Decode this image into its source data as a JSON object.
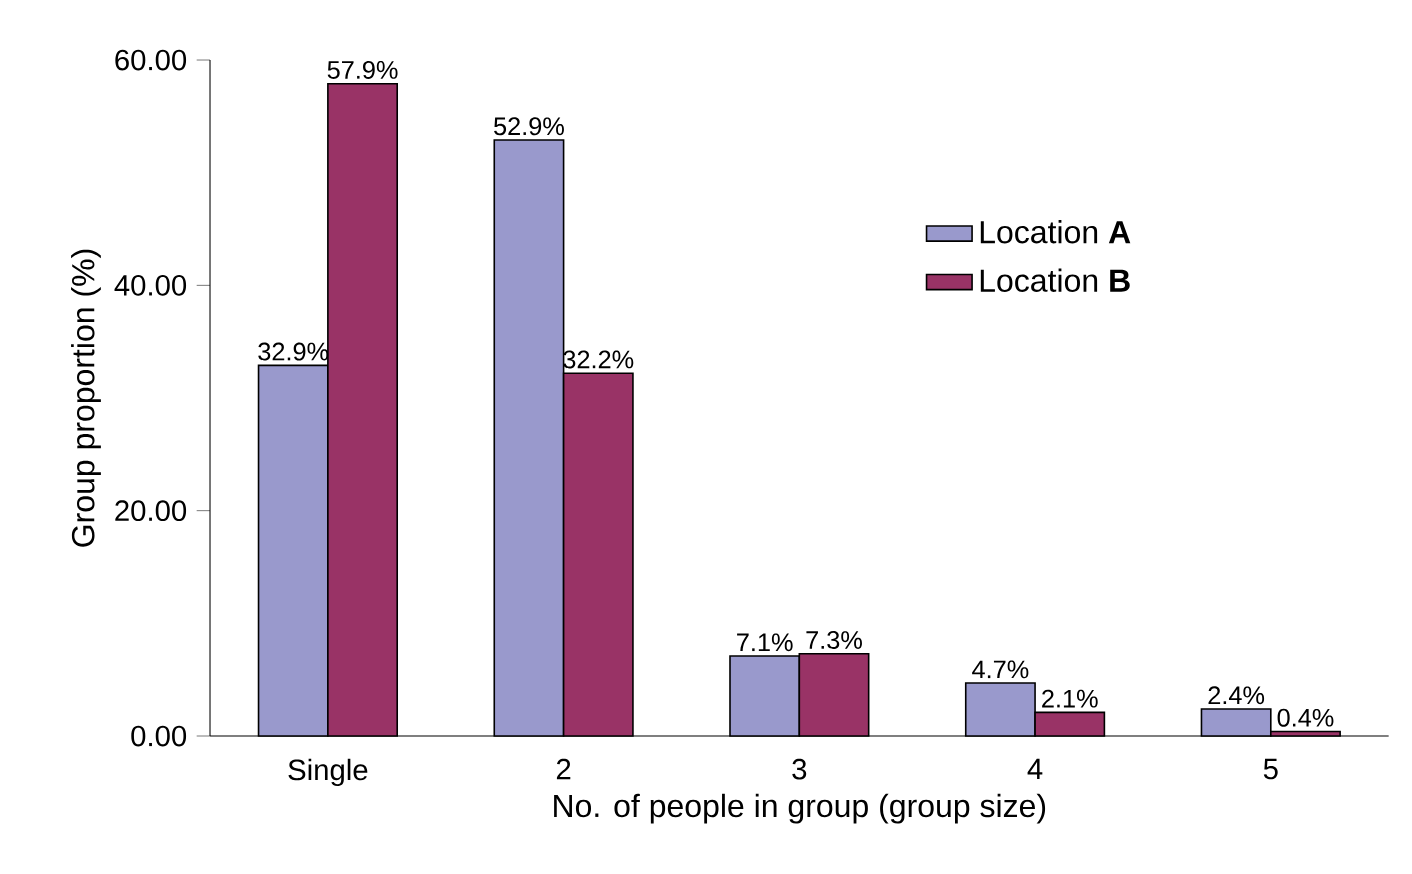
{
  "chart_data": {
    "type": "bar",
    "xlabel": "No. of people in group (group size)",
    "ylabel": "Group proportion (%)",
    "categories": [
      "Single",
      "2",
      "3",
      "4",
      "5"
    ],
    "series": [
      {
        "name": "Location **A**",
        "color": "#9999cc",
        "values": [
          32.9,
          52.9,
          7.1,
          4.7,
          2.4
        ],
        "value_labels": [
          "32.9%",
          "52.9%",
          "7.1%",
          "4.7%",
          "2.4%"
        ]
      },
      {
        "name": "Location **B**",
        "color": "#993366",
        "values": [
          57.9,
          32.2,
          7.3,
          2.1,
          0.4
        ],
        "value_labels": [
          "57.9%",
          "32.2%",
          "7.3%",
          "2.1%",
          "0.4%"
        ]
      }
    ],
    "ylim": [
      0,
      60
    ],
    "yticks": [
      {
        "value": 0,
        "label": "0.00"
      },
      {
        "value": 20,
        "label": "20.00"
      },
      {
        "value": 40,
        "label": "40.00"
      },
      {
        "value": 60,
        "label": "60.00"
      }
    ],
    "grid": false,
    "legend": "right"
  }
}
